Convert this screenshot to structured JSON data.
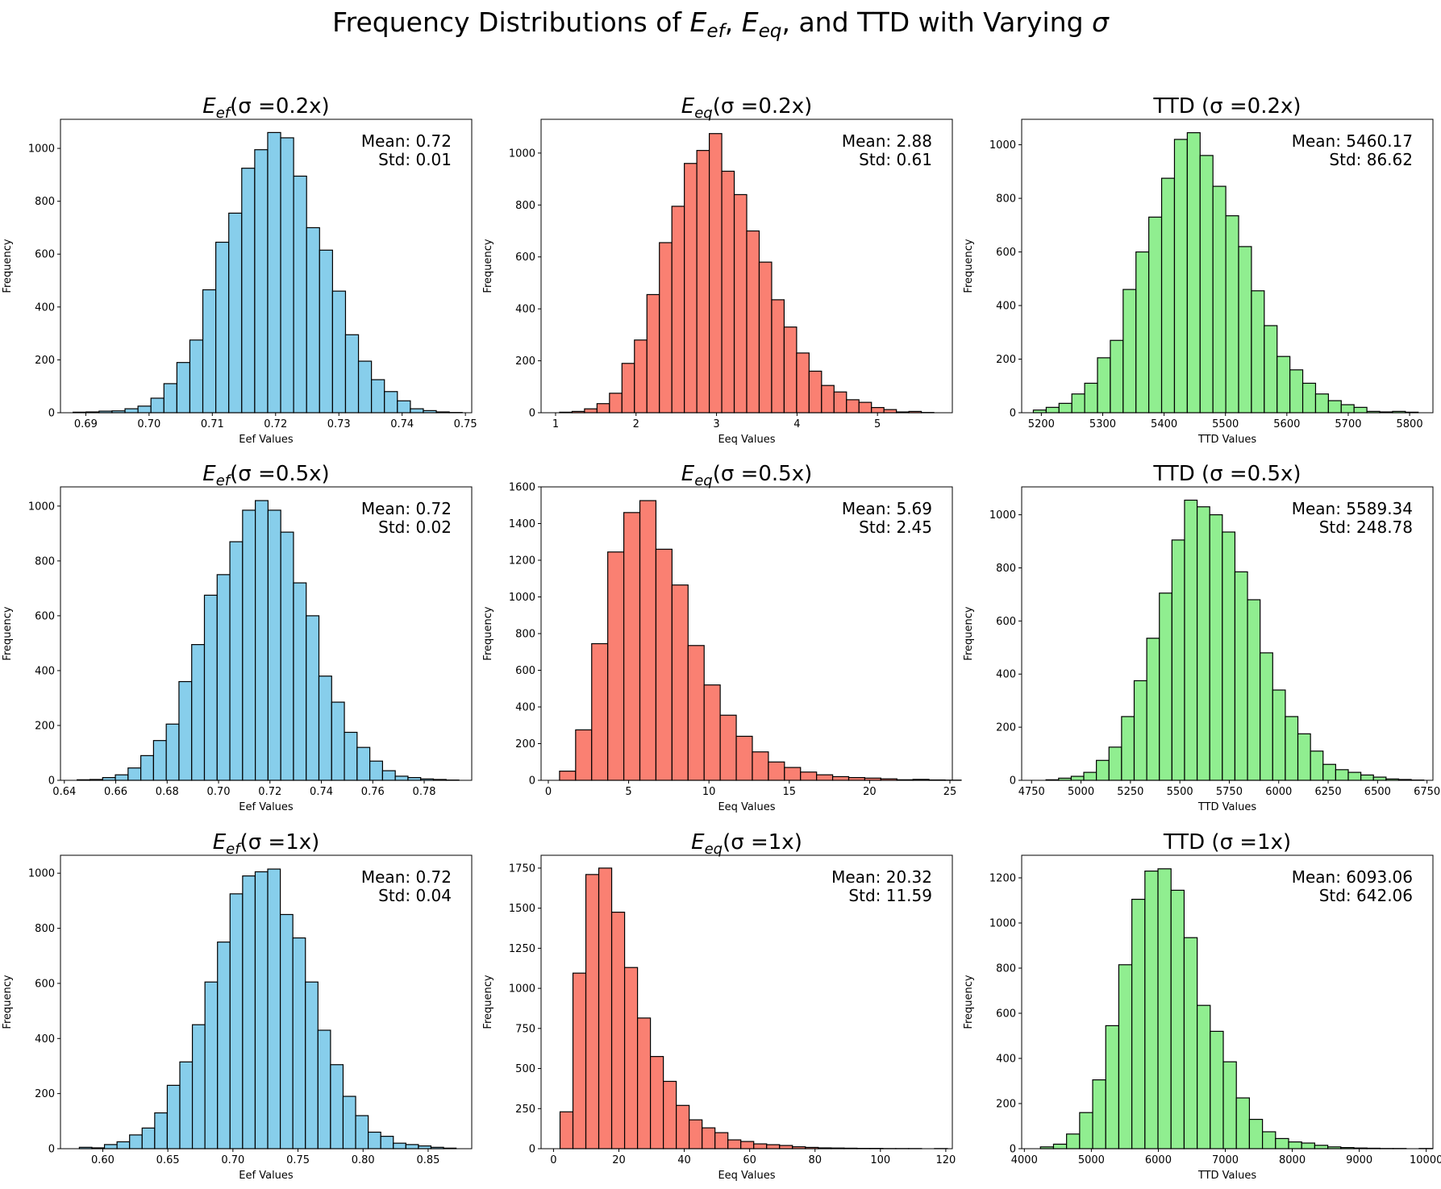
{
  "figure": {
    "title_parts": {
      "prefix": "Frequency Distributions of ",
      "e1_base": "E",
      "e1_sub": "ef",
      "sep1": ", ",
      "e2_base": "E",
      "e2_sub": "eq",
      "suffix": ", and TTD with Varying ",
      "sigma": "σ"
    }
  },
  "colors": {
    "Eef": "#87ceeb",
    "Eeq": "#fa8072",
    "TTD": "#90ee90",
    "edge": "#000000"
  },
  "chart_data": [
    {
      "type": "bar",
      "title_base": "E",
      "title_sub": "ef",
      "title_rest": "(σ =0.2x)",
      "xlabel": "Eef Values",
      "ylabel": "Frequency",
      "stats": [
        "Mean: 0.72",
        "Std: 0.01"
      ],
      "xlim": [
        0.686,
        0.751
      ],
      "ylim": [
        0,
        1110
      ],
      "xticks": [
        0.69,
        0.7,
        0.71,
        0.72,
        0.73,
        0.74,
        0.75
      ],
      "xtick_labels": [
        "0.69",
        "0.70",
        "0.71",
        "0.72",
        "0.73",
        "0.74",
        "0.75"
      ],
      "yticks": [
        0,
        200,
        400,
        600,
        800,
        1000
      ],
      "ytick_labels": [
        "0",
        "200",
        "400",
        "600",
        "800",
        "1000"
      ],
      "bin_start": 0.688,
      "bin_width": 0.00205,
      "values": [
        2,
        3,
        6,
        7,
        15,
        25,
        55,
        110,
        190,
        275,
        465,
        645,
        755,
        925,
        995,
        1060,
        1040,
        895,
        700,
        615,
        460,
        295,
        195,
        125,
        80,
        45,
        15,
        8,
        3,
        1
      ]
    },
    {
      "type": "bar",
      "title_base": "E",
      "title_sub": "eq",
      "title_rest": "(σ =0.2x)",
      "xlabel": "Eeq Values",
      "ylabel": "Frequency",
      "stats": [
        "Mean: 2.88",
        "Std: 0.61"
      ],
      "xlim": [
        0.82,
        5.93
      ],
      "ylim": [
        0,
        1130
      ],
      "xticks": [
        1,
        2,
        3,
        4,
        5
      ],
      "xtick_labels": [
        "1",
        "2",
        "3",
        "4",
        "5"
      ],
      "yticks": [
        0,
        200,
        400,
        600,
        800,
        1000
      ],
      "ytick_labels": [
        "0",
        "200",
        "400",
        "600",
        "800",
        "1000"
      ],
      "bin_start": 1.05,
      "bin_width": 0.155,
      "values": [
        2,
        5,
        15,
        35,
        75,
        190,
        280,
        455,
        655,
        795,
        960,
        1010,
        1075,
        930,
        840,
        700,
        580,
        435,
        330,
        230,
        160,
        105,
        80,
        50,
        40,
        20,
        12,
        3,
        5,
        1
      ]
    },
    {
      "type": "bar",
      "title_base": "",
      "title_sub": "",
      "title_rest": "TTD (σ =0.2x)",
      "xlabel": "TTD Values",
      "ylabel": "Frequency",
      "stats": [
        "Mean: 5460.17",
        "Std: 86.62"
      ],
      "xlim": [
        5168,
        5838
      ],
      "ylim": [
        0,
        1095
      ],
      "xticks": [
        5200,
        5300,
        5400,
        5500,
        5600,
        5700,
        5800
      ],
      "xtick_labels": [
        "5200",
        "5300",
        "5400",
        "5500",
        "5600",
        "5700",
        "5800"
      ],
      "yticks": [
        0,
        200,
        400,
        600,
        800,
        1000
      ],
      "ytick_labels": [
        "0",
        "200",
        "400",
        "600",
        "800",
        "1000"
      ],
      "bin_start": 5187,
      "bin_width": 20.9,
      "values": [
        10,
        20,
        35,
        70,
        110,
        205,
        270,
        460,
        600,
        730,
        875,
        1020,
        1045,
        960,
        845,
        735,
        620,
        455,
        325,
        210,
        160,
        110,
        70,
        45,
        30,
        20,
        5,
        3,
        5,
        2
      ]
    },
    {
      "type": "bar",
      "title_base": "E",
      "title_sub": "ef",
      "title_rest": "(σ =0.5x)",
      "xlabel": "Eef Values",
      "ylabel": "Frequency",
      "stats": [
        "Mean: 0.72",
        "Std: 0.02"
      ],
      "xlim": [
        0.6385,
        0.7985
      ],
      "ylim": [
        0,
        1070
      ],
      "xticks": [
        0.64,
        0.66,
        0.68,
        0.7,
        0.72,
        0.74,
        0.76,
        0.78
      ],
      "xtick_labels": [
        "0.64",
        "0.66",
        "0.68",
        "0.70",
        "0.72",
        "0.74",
        "0.76",
        "0.78"
      ],
      "yticks": [
        0,
        200,
        400,
        600,
        800,
        1000
      ],
      "ytick_labels": [
        "0",
        "200",
        "400",
        "600",
        "800",
        "1000"
      ],
      "bin_start": 0.645,
      "bin_width": 0.00495,
      "values": [
        2,
        3,
        10,
        20,
        45,
        90,
        145,
        205,
        360,
        495,
        675,
        750,
        870,
        985,
        1020,
        985,
        905,
        720,
        600,
        380,
        285,
        175,
        120,
        70,
        35,
        15,
        10,
        5,
        3,
        1
      ]
    },
    {
      "type": "bar",
      "title_base": "E",
      "title_sub": "eq",
      "title_rest": "(σ =0.5x)",
      "xlabel": "Eeq Values",
      "ylabel": "Frequency",
      "stats": [
        "Mean: 5.69",
        "Std: 2.45"
      ],
      "xlim": [
        -0.45,
        25.15
      ],
      "ylim": [
        0,
        1600
      ],
      "xticks": [
        0,
        5,
        10,
        15,
        20,
        25
      ],
      "xtick_labels": [
        "0",
        "5",
        "10",
        "15",
        "20",
        "25"
      ],
      "yticks": [
        0,
        200,
        400,
        600,
        800,
        1000,
        1200,
        1400,
        1600
      ],
      "ytick_labels": [
        "0",
        "200",
        "400",
        "600",
        "800",
        "1000",
        "1200",
        "1400",
        "1600"
      ],
      "bin_start": 0.7,
      "bin_width": 1.0,
      "values": [
        50,
        275,
        745,
        1245,
        1460,
        1525,
        1260,
        1065,
        735,
        520,
        355,
        240,
        155,
        100,
        70,
        45,
        30,
        20,
        15,
        12,
        8,
        3,
        5,
        2,
        1
      ]
    },
    {
      "type": "bar",
      "title_base": "",
      "title_sub": "",
      "title_rest": "TTD (σ =0.5x)",
      "xlabel": "TTD Values",
      "ylabel": "Frequency",
      "stats": [
        "Mean: 5589.34",
        "Std: 248.78"
      ],
      "xlim": [
        4700,
        6780
      ],
      "ylim": [
        0,
        1105
      ],
      "xticks": [
        4750,
        5000,
        5250,
        5500,
        5750,
        6000,
        6250,
        6500,
        6750
      ],
      "xtick_labels": [
        "4750",
        "5000",
        "5250",
        "5500",
        "5750",
        "6000",
        "6250",
        "6500",
        "6750"
      ],
      "yticks": [
        0,
        200,
        400,
        600,
        800,
        1000
      ],
      "ytick_labels": [
        "0",
        "200",
        "400",
        "600",
        "800",
        "1000"
      ],
      "bin_start": 4823,
      "bin_width": 63.7,
      "values": [
        2,
        8,
        15,
        30,
        75,
        125,
        240,
        375,
        535,
        705,
        905,
        1055,
        1030,
        1000,
        935,
        785,
        680,
        480,
        340,
        240,
        175,
        110,
        60,
        40,
        30,
        20,
        12,
        5,
        3,
        1
      ]
    },
    {
      "type": "bar",
      "title_base": "E",
      "title_sub": "ef",
      "title_rest": "(σ =1x)",
      "xlabel": "Eef Values",
      "ylabel": "Frequency",
      "stats": [
        "Mean: 0.72",
        "Std: 0.04"
      ],
      "xlim": [
        0.5675,
        0.8835
      ],
      "ylim": [
        0,
        1065
      ],
      "xticks": [
        0.6,
        0.65,
        0.7,
        0.75,
        0.8,
        0.85
      ],
      "xtick_labels": [
        "0.60",
        "0.65",
        "0.70",
        "0.75",
        "0.80",
        "0.85"
      ],
      "yticks": [
        0,
        200,
        400,
        600,
        800,
        1000
      ],
      "ytick_labels": [
        "0",
        "200",
        "400",
        "600",
        "800",
        "1000"
      ],
      "bin_start": 0.582,
      "bin_width": 0.00965,
      "values": [
        5,
        3,
        15,
        25,
        50,
        75,
        130,
        230,
        315,
        450,
        605,
        750,
        925,
        990,
        1005,
        1015,
        850,
        765,
        605,
        430,
        305,
        190,
        120,
        60,
        45,
        20,
        15,
        10,
        5,
        2
      ]
    },
    {
      "type": "bar",
      "title_base": "E",
      "title_sub": "eq",
      "title_rest": "(σ =1x)",
      "xlabel": "Eeq Values",
      "ylabel": "Frequency",
      "stats": [
        "Mean: 20.32",
        "Std: 11.59"
      ],
      "xlim": [
        -3.8,
        122.0
      ],
      "ylim": [
        0,
        1830
      ],
      "xticks": [
        0,
        20,
        40,
        60,
        80,
        100,
        120
      ],
      "xtick_labels": [
        "0",
        "20",
        "40",
        "60",
        "80",
        "100",
        "120"
      ],
      "yticks": [
        0,
        250,
        500,
        750,
        1000,
        1250,
        1500,
        1750
      ],
      "ytick_labels": [
        "0",
        "250",
        "500",
        "750",
        "1000",
        "1250",
        "1500",
        "1750"
      ],
      "bin_start": 2.0,
      "bin_width": 3.95,
      "values": [
        230,
        1095,
        1710,
        1750,
        1475,
        1130,
        815,
        575,
        420,
        270,
        180,
        130,
        100,
        55,
        45,
        30,
        25,
        20,
        12,
        8,
        5,
        4,
        3,
        2,
        2,
        1,
        1,
        1,
        0,
        1
      ]
    },
    {
      "type": "bar",
      "title_base": "",
      "title_sub": "",
      "title_rest": "TTD (σ =1x)",
      "xlabel": "TTD Values",
      "ylabel": "Frequency",
      "stats": [
        "Mean: 6093.06",
        "Std: 642.06"
      ],
      "xlim": [
        3960,
        10100
      ],
      "ylim": [
        0,
        1300
      ],
      "xticks": [
        4000,
        5000,
        6000,
        7000,
        8000,
        9000,
        10000
      ],
      "xtick_labels": [
        "4000",
        "5000",
        "6000",
        "7000",
        "8000",
        "9000",
        "10000"
      ],
      "yticks": [
        0,
        200,
        400,
        600,
        800,
        1000,
        1200
      ],
      "ytick_labels": [
        "0",
        "200",
        "400",
        "600",
        "800",
        "1000",
        "1200"
      ],
      "bin_start": 4240,
      "bin_width": 195,
      "values": [
        8,
        20,
        65,
        160,
        305,
        545,
        815,
        1105,
        1230,
        1240,
        1145,
        935,
        635,
        520,
        385,
        225,
        130,
        75,
        45,
        30,
        25,
        15,
        8,
        5,
        3,
        2,
        1,
        1,
        0,
        1
      ]
    }
  ]
}
